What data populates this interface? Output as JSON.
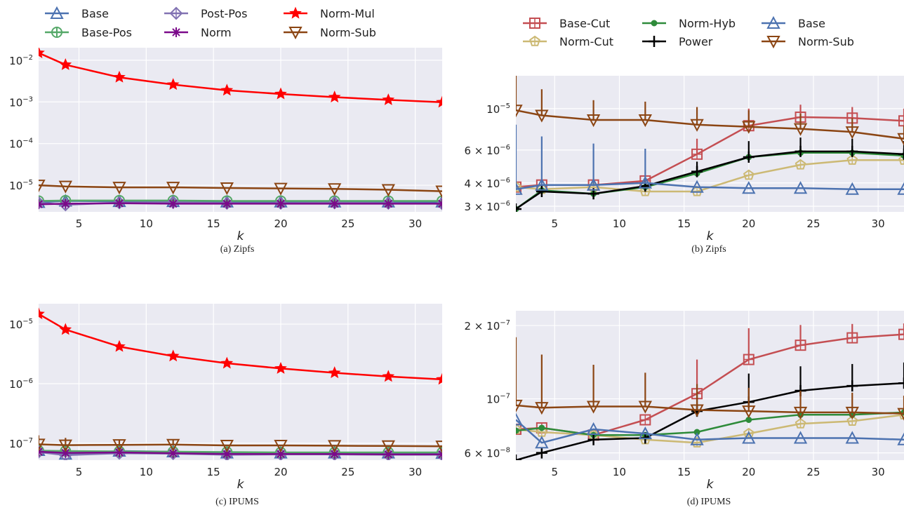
{
  "chart_data": [
    {
      "type": "line",
      "caption": "(a) Zipfs",
      "xlabel": "k",
      "ylabel": "",
      "yscale": "log",
      "xlim": [
        2,
        32
      ],
      "ylim": [
        2.3e-06,
        0.02
      ],
      "xticks": [
        "5",
        "10",
        "15",
        "20",
        "25",
        "30"
      ],
      "yticks": [
        {
          "v": 1e-05,
          "b": "10",
          "e": "-5"
        },
        {
          "v": 0.0001,
          "b": "10",
          "e": "-4"
        },
        {
          "v": 0.001,
          "b": "10",
          "e": "-3"
        },
        {
          "v": 0.01,
          "b": "10",
          "e": "-2"
        }
      ],
      "grid": true,
      "legend": "top, outside",
      "x": [
        2,
        4,
        8,
        12,
        16,
        20,
        24,
        28,
        32
      ],
      "series": [
        {
          "name": "Base",
          "color": "#4C72B0",
          "marker": "triangle",
          "values": [
            3.9e-06,
            4.2e-06,
            4.1e-06,
            4.1e-06,
            4e-06,
            4e-06,
            4e-06,
            4e-06,
            4e-06
          ]
        },
        {
          "name": "Base-Pos",
          "color": "#55A868",
          "marker": "circle-plus",
          "values": [
            4.2e-06,
            4.3e-06,
            4.3e-06,
            4.3e-06,
            4.2e-06,
            4.2e-06,
            4.2e-06,
            4.2e-06,
            4.2e-06
          ]
        },
        {
          "name": "Post-Pos",
          "color": "#8172B2",
          "marker": "diamond",
          "values": [
            3.8e-06,
            3.4e-06,
            3.8e-06,
            3.9e-06,
            3.7e-06,
            3.7e-06,
            3.8e-06,
            3.7e-06,
            3.6e-06
          ]
        },
        {
          "name": "Norm",
          "color": "#7B0A8A",
          "marker": "asterisk",
          "values": [
            3.5e-06,
            3.6e-06,
            3.7e-06,
            3.6e-06,
            3.6e-06,
            3.6e-06,
            3.6e-06,
            3.6e-06,
            3.6e-06
          ]
        },
        {
          "name": "Norm-Mul",
          "color": "#FF0000",
          "marker": "star",
          "values": [
            0.015,
            0.0078,
            0.0039,
            0.0026,
            0.0019,
            0.00155,
            0.0013,
            0.00112,
            0.00098
          ]
        },
        {
          "name": "Norm-Sub",
          "color": "#8B4513",
          "marker": "triangle-down",
          "values": [
            1e-05,
            9.4e-06,
            8.9e-06,
            8.9e-06,
            8.6e-06,
            8.4e-06,
            8.2e-06,
            7.8e-06,
            7.2e-06
          ]
        }
      ]
    },
    {
      "type": "line",
      "caption": "(b) Zipfs",
      "xlabel": "k",
      "ylabel": "",
      "yscale": "log",
      "xlim": [
        2,
        32
      ],
      "ylim": [
        2.8e-06,
        1.5e-05
      ],
      "xticks": [
        "5",
        "10",
        "15",
        "20",
        "25",
        "30"
      ],
      "yticks": [
        {
          "v": 3e-06,
          "b": "3 × 10",
          "e": "-6"
        },
        {
          "v": 4e-06,
          "b": "4 × 10",
          "e": "-6"
        },
        {
          "v": 6e-06,
          "b": "6 × 10",
          "e": "-6"
        },
        {
          "v": 1e-05,
          "b": "10",
          "e": "-5"
        }
      ],
      "grid": true,
      "legend": "top, outside",
      "x": [
        2,
        4,
        8,
        12,
        16,
        20,
        24,
        28,
        32
      ],
      "series": [
        {
          "name": "Base-Cut",
          "color": "#C44E52",
          "marker": "square-plus",
          "values": [
            3.8e-06,
            3.9e-06,
            3.9e-06,
            4.1e-06,
            5.7e-06,
            8.1e-06,
            9e-06,
            8.9e-06,
            8.6e-06
          ],
          "err_up": [
            0,
            0,
            0,
            0,
            1.2e-06,
            1.9e-06,
            1.5e-06,
            1.3e-06,
            1.4e-06
          ]
        },
        {
          "name": "Norm-Cut",
          "color": "#CCB974",
          "marker": "pentagon",
          "values": [
            3.8e-06,
            3.7e-06,
            3.8e-06,
            3.6e-06,
            3.6e-06,
            4.4e-06,
            5e-06,
            5.3e-06,
            5.3e-06
          ],
          "err_up": [
            0,
            0,
            0,
            0,
            0,
            0,
            0,
            0,
            0
          ]
        },
        {
          "name": "Norm-Hyb",
          "color": "#2E8B3A",
          "marker": "dot",
          "values": [
            2.9e-06,
            3.65e-06,
            3.5e-06,
            3.8e-06,
            4.5e-06,
            5.5e-06,
            5.8e-06,
            5.8e-06,
            5.6e-06
          ],
          "err_up": [
            0,
            0,
            0,
            0,
            0,
            0,
            0,
            0,
            0
          ]
        },
        {
          "name": "Power",
          "color": "#000000",
          "marker": "plus",
          "values": [
            2.9e-06,
            3.6e-06,
            3.5e-06,
            3.85e-06,
            4.6e-06,
            5.5e-06,
            5.9e-06,
            5.9e-06,
            5.7e-06
          ],
          "err_up": [
            0,
            0,
            0,
            0,
            6e-07,
            1.2e-06,
            1.1e-06,
            1e-06,
            1e-06
          ]
        },
        {
          "name": "Base",
          "color": "#4C72B0",
          "marker": "triangle",
          "values": [
            3.7e-06,
            3.9e-06,
            3.9e-06,
            4e-06,
            3.8e-06,
            3.75e-06,
            3.75e-06,
            3.7e-06,
            3.7e-06
          ],
          "err_up": [
            4.5e-06,
            3.2e-06,
            2.6e-06,
            2.1e-06,
            0,
            0,
            0,
            0,
            0
          ]
        },
        {
          "name": "Norm-Sub",
          "color": "#8B4513",
          "marker": "triangle-down",
          "values": [
            9.8e-06,
            9.2e-06,
            8.7e-06,
            8.7e-06,
            8.2e-06,
            8e-06,
            7.8e-06,
            7.5e-06,
            6.9e-06
          ],
          "err_up": [
            6.4e-06,
            3.5e-06,
            2.4e-06,
            2.2e-06,
            2e-06,
            1.8e-06,
            1.6e-06,
            1.4e-06,
            1.2e-06
          ]
        }
      ]
    },
    {
      "type": "line",
      "caption": "(c) IPUMS",
      "xlabel": "k",
      "ylabel": "",
      "yscale": "log",
      "xlim": [
        2,
        32
      ],
      "ylim": [
        5.2e-08,
        2.2e-05
      ],
      "xticks": [
        "5",
        "10",
        "15",
        "20",
        "25",
        "30"
      ],
      "yticks": [
        {
          "v": 1e-07,
          "b": "10",
          "e": "-7"
        },
        {
          "v": 1e-06,
          "b": "10",
          "e": "-6"
        },
        {
          "v": 1e-05,
          "b": "10",
          "e": "-5"
        }
      ],
      "grid": true,
      "legend": "shared with (a)",
      "x": [
        2,
        4,
        8,
        12,
        16,
        20,
        24,
        28,
        32
      ],
      "series": [
        {
          "name": "Base",
          "color": "#4C72B0",
          "marker": "triangle",
          "values": [
            7.6e-08,
            6.6e-08,
            7.4e-08,
            7.2e-08,
            6.9e-08,
            6.9e-08,
            6.9e-08,
            6.9e-08,
            6.8e-08
          ]
        },
        {
          "name": "Base-Pos",
          "color": "#55A868",
          "marker": "circle-plus",
          "values": [
            7.5e-08,
            7.4e-08,
            7.3e-08,
            7.2e-08,
            7.1e-08,
            7e-08,
            7e-08,
            7e-08,
            7e-08
          ]
        },
        {
          "name": "Post-Pos",
          "color": "#8172B2",
          "marker": "diamond",
          "values": [
            7.1e-08,
            6.3e-08,
            6.8e-08,
            6.7e-08,
            6.4e-08,
            6.5e-08,
            6.5e-08,
            6.4e-08,
            6.4e-08
          ]
        },
        {
          "name": "Norm",
          "color": "#7B0A8A",
          "marker": "asterisk",
          "values": [
            7.2e-08,
            6.9e-08,
            7e-08,
            6.8e-08,
            6.6e-08,
            6.6e-08,
            6.6e-08,
            6.5e-08,
            6.5e-08
          ]
        },
        {
          "name": "Norm-Mul",
          "color": "#FF0000",
          "marker": "star",
          "values": [
            1.48e-05,
            8.1e-06,
            4.2e-06,
            2.9e-06,
            2.2e-06,
            1.8e-06,
            1.52e-06,
            1.32e-06,
            1.18e-06
          ]
        },
        {
          "name": "Norm-Sub",
          "color": "#8B4513",
          "marker": "triangle-down",
          "values": [
            9.6e-08,
            9.3e-08,
            9.4e-08,
            9.5e-08,
            9.2e-08,
            9.2e-08,
            9.1e-08,
            9e-08,
            8.9e-08
          ],
          "err_up": [
            4e-08,
            3e-08,
            2.2e-08,
            1.8e-08,
            0,
            0,
            0,
            0,
            0
          ]
        }
      ]
    },
    {
      "type": "line",
      "caption": "(d) IPUMS",
      "xlabel": "k",
      "ylabel": "",
      "yscale": "log",
      "xlim": [
        2,
        32
      ],
      "ylim": [
        5.6e-08,
        2.3e-07
      ],
      "xticks": [
        "5",
        "10",
        "15",
        "20",
        "25",
        "30"
      ],
      "yticks": [
        {
          "v": 6e-08,
          "b": "6 × 10",
          "e": "-8"
        },
        {
          "v": 1e-07,
          "b": "10",
          "e": "-7"
        },
        {
          "v": 2e-07,
          "b": "2 × 10",
          "e": "-7"
        }
      ],
      "grid": true,
      "legend": "shared with (b)",
      "x": [
        2,
        4,
        8,
        12,
        16,
        20,
        24,
        28,
        32
      ],
      "series": [
        {
          "name": "Base-Cut",
          "color": "#C44E52",
          "marker": "square-plus",
          "values": [
            7.5e-08,
            7.6e-08,
            7.1e-08,
            8.2e-08,
            1.05e-07,
            1.45e-07,
            1.66e-07,
            1.78e-07,
            1.84e-07
          ],
          "err_up": [
            0,
            0,
            0,
            0,
            4e-08,
            5e-08,
            3.5e-08,
            2.5e-08,
            2e-08
          ]
        },
        {
          "name": "Norm-Cut",
          "color": "#CCB974",
          "marker": "pentagon",
          "values": [
            7.5e-08,
            7.3e-08,
            7.1e-08,
            6.8e-08,
            6.6e-08,
            7.2e-08,
            7.9e-08,
            8.1e-08,
            8.6e-08
          ],
          "err_up": [
            0,
            0,
            0,
            0,
            0,
            0,
            0,
            0,
            0
          ]
        },
        {
          "name": "Norm-Hyb",
          "color": "#2E8B3A",
          "marker": "dot",
          "values": [
            7.4e-08,
            7.6e-08,
            7.1e-08,
            7.1e-08,
            7.3e-08,
            8.2e-08,
            8.6e-08,
            8.6e-08,
            8.8e-08
          ],
          "err_up": [
            0,
            0,
            0,
            0,
            0,
            0,
            0,
            0,
            0
          ]
        },
        {
          "name": "Power",
          "color": "#000000",
          "marker": "plus",
          "values": [
            5.6e-08,
            6e-08,
            6.8e-08,
            6.9e-08,
            8.9e-08,
            9.7e-08,
            1.08e-07,
            1.13e-07,
            1.16e-07
          ],
          "err_up": [
            0,
            0,
            0,
            0,
            1.8e-08,
            3e-08,
            2.8e-08,
            2.6e-08,
            2.5e-08
          ]
        },
        {
          "name": "Base",
          "color": "#4C72B0",
          "marker": "triangle",
          "values": [
            8.2e-08,
            6.6e-08,
            7.5e-08,
            7.2e-08,
            6.8e-08,
            6.9e-08,
            6.9e-08,
            6.9e-08,
            6.8e-08
          ],
          "err_up": [
            0,
            0,
            0,
            0,
            0,
            0,
            0,
            0,
            0
          ]
        },
        {
          "name": "Norm-Sub",
          "color": "#8B4513",
          "marker": "triangle-down",
          "values": [
            9.4e-08,
            9.2e-08,
            9.3e-08,
            9.3e-08,
            9e-08,
            8.9e-08,
            8.8e-08,
            8.8e-08,
            8.7e-08
          ],
          "err_up": [
            8.5e-08,
            6e-08,
            4.5e-08,
            3.5e-08,
            2.5e-08,
            2.2e-08,
            2e-08,
            1.8e-08,
            1.6e-08
          ]
        }
      ]
    }
  ],
  "legends": {
    "left": [
      "Base",
      "Base-Pos",
      "Post-Pos",
      "Norm",
      "Norm-Mul",
      "Norm-Sub"
    ],
    "right": [
      "Base-Cut",
      "Norm-Cut",
      "Norm-Hyb",
      "Power",
      "Base",
      "Norm-Sub"
    ]
  }
}
